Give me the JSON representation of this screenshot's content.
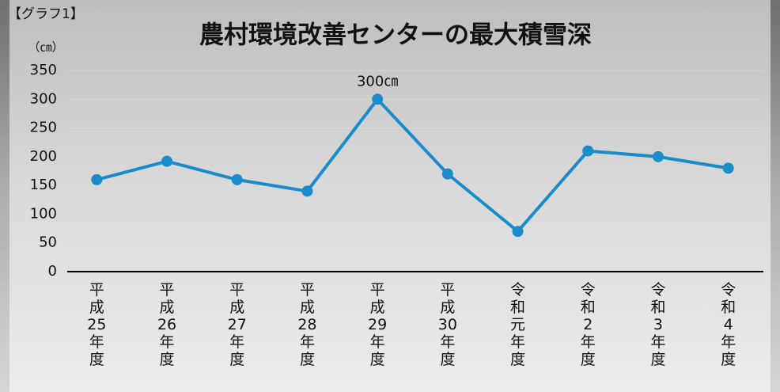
{
  "chart_data": {
    "type": "line",
    "label": "【グラフ1】",
    "title": "農村環境改善センターの最大積雪深",
    "y_label": "（㎝）",
    "categories": [
      "平成25年度",
      "平成26年度",
      "平成27年度",
      "平成28年度",
      "平成29年度",
      "平成30年度",
      "令和元年度",
      "令和2年度",
      "令和3年度",
      "令和4年度"
    ],
    "values": [
      160,
      192,
      160,
      140,
      300,
      170,
      70,
      210,
      200,
      180
    ],
    "value_labels": [
      null,
      null,
      null,
      null,
      "300㎝",
      null,
      null,
      null,
      null,
      null
    ],
    "color": "#1a8ccb",
    "ylim": [
      0,
      350
    ],
    "yticks": [
      0,
      50,
      100,
      150,
      200,
      250,
      300,
      350
    ],
    "grid": true
  }
}
